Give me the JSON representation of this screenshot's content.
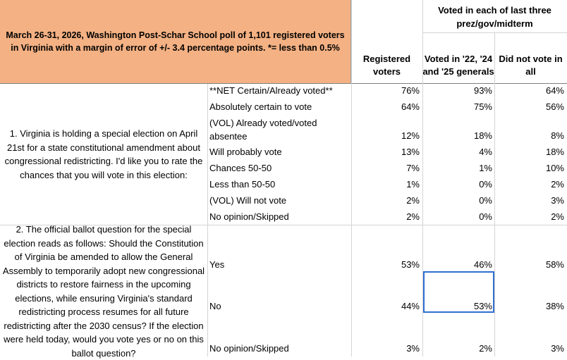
{
  "header": {
    "title": "March 26-31, 2026, Washington Post-Schar School poll of 1,101 registered voters in Virginia with a margin of error of +/- 3.4 percentage points. *= less than 0.5%",
    "group": "Voted in each of last three prez/gov/midterm",
    "col_registered": "Registered voters",
    "col_voted": "Voted in '22, '24 and '25 generals",
    "col_didnot": "Did not vote in all"
  },
  "q1": {
    "text": "1. Virginia is holding a special election on April 21st for a state constitutional amendment about congressional redistricting. I'd like you to rate the chances that you will vote in this election:",
    "rows": [
      {
        "label": "**NET Certain/Already voted**",
        "reg": "76%",
        "voted": "93%",
        "didnot": "64%"
      },
      {
        "label": "Absolutely certain to vote",
        "reg": "64%",
        "voted": "75%",
        "didnot": "56%"
      },
      {
        "label": "(VOL) Already voted/voted absentee",
        "reg": "12%",
        "voted": "18%",
        "didnot": "8%"
      },
      {
        "label": "Will probably vote",
        "reg": "13%",
        "voted": "4%",
        "didnot": "18%"
      },
      {
        "label": "Chances 50-50",
        "reg": "7%",
        "voted": "1%",
        "didnot": "10%"
      },
      {
        "label": "Less than 50-50",
        "reg": "1%",
        "voted": "0%",
        "didnot": "2%"
      },
      {
        "label": "(VOL) Will not vote",
        "reg": "2%",
        "voted": "0%",
        "didnot": "3%"
      },
      {
        "label": "No opinion/Skipped",
        "reg": "2%",
        "voted": "0%",
        "didnot": "2%"
      }
    ]
  },
  "q2": {
    "text": "2. The official ballot question for the special election reads as follows: Should the Constitution of Virginia be amended to allow the General Assembly to temporarily adopt new congressional districts to restore fairness in the upcoming elections, while ensuring Virginia's standard redistricting process resumes for all future redistricting after the 2030 census? If the election were held today, would you vote yes or no on this ballot question?",
    "rows": [
      {
        "label": "Yes",
        "reg": "53%",
        "voted": "46%",
        "didnot": "58%"
      },
      {
        "label": "No",
        "reg": "44%",
        "voted": "53%",
        "didnot": "38%"
      },
      {
        "label": "No opinion/Skipped",
        "reg": "3%",
        "voted": "2%",
        "didnot": "3%"
      }
    ]
  }
}
